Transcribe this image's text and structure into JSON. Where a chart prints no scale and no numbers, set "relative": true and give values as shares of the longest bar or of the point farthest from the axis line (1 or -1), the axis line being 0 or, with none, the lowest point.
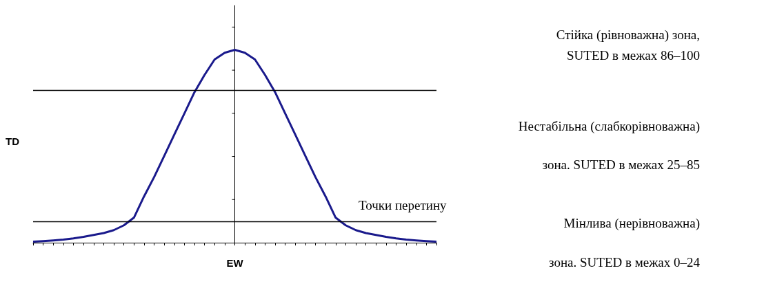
{
  "chart_data": {
    "type": "line",
    "relative": true,
    "xlabel": "EW",
    "ylabel": "TD",
    "categories": [
      null,
      null,
      null,
      null,
      null,
      null,
      null,
      null,
      null,
      null,
      null,
      null,
      null,
      null,
      null,
      null,
      null,
      null,
      null,
      null,
      null,
      null,
      null,
      null,
      null,
      null,
      null,
      null,
      null,
      null,
      null,
      null,
      null,
      null,
      null,
      null,
      null,
      null,
      null,
      null,
      null
    ],
    "series": [
      {
        "color": "#1a1a8c",
        "values": [
          0.005,
          0.008,
          0.012,
          0.016,
          0.022,
          0.03,
          0.04,
          0.05,
          0.065,
          0.09,
          0.13,
          0.24,
          0.34,
          0.45,
          0.56,
          0.67,
          0.78,
          0.87,
          0.95,
          0.985,
          1.0,
          0.985,
          0.95,
          0.87,
          0.78,
          0.67,
          0.56,
          0.45,
          0.34,
          0.24,
          0.13,
          0.09,
          0.065,
          0.05,
          0.04,
          0.03,
          0.022,
          0.016,
          0.012,
          0.008,
          0.005
        ]
      }
    ],
    "ref_lines": [
      {
        "axis": "y",
        "value": 0.79,
        "color": "#000000"
      },
      {
        "axis": "y",
        "value": 0.11,
        "color": "#000000"
      }
    ],
    "annotations": [
      "Стійка (рівноважна) зона,",
      "SUTED в межах 86–100",
      "Нестабільна (слабкорівноважна)",
      "зона. SUTED в межах 25–85",
      "Точки перетину",
      "Мінлива (нерівноважна)",
      "зона. SUTED в межах 0–24"
    ],
    "marker": "none",
    "line_style": "solid",
    "grid": false,
    "tick_labels": false
  }
}
